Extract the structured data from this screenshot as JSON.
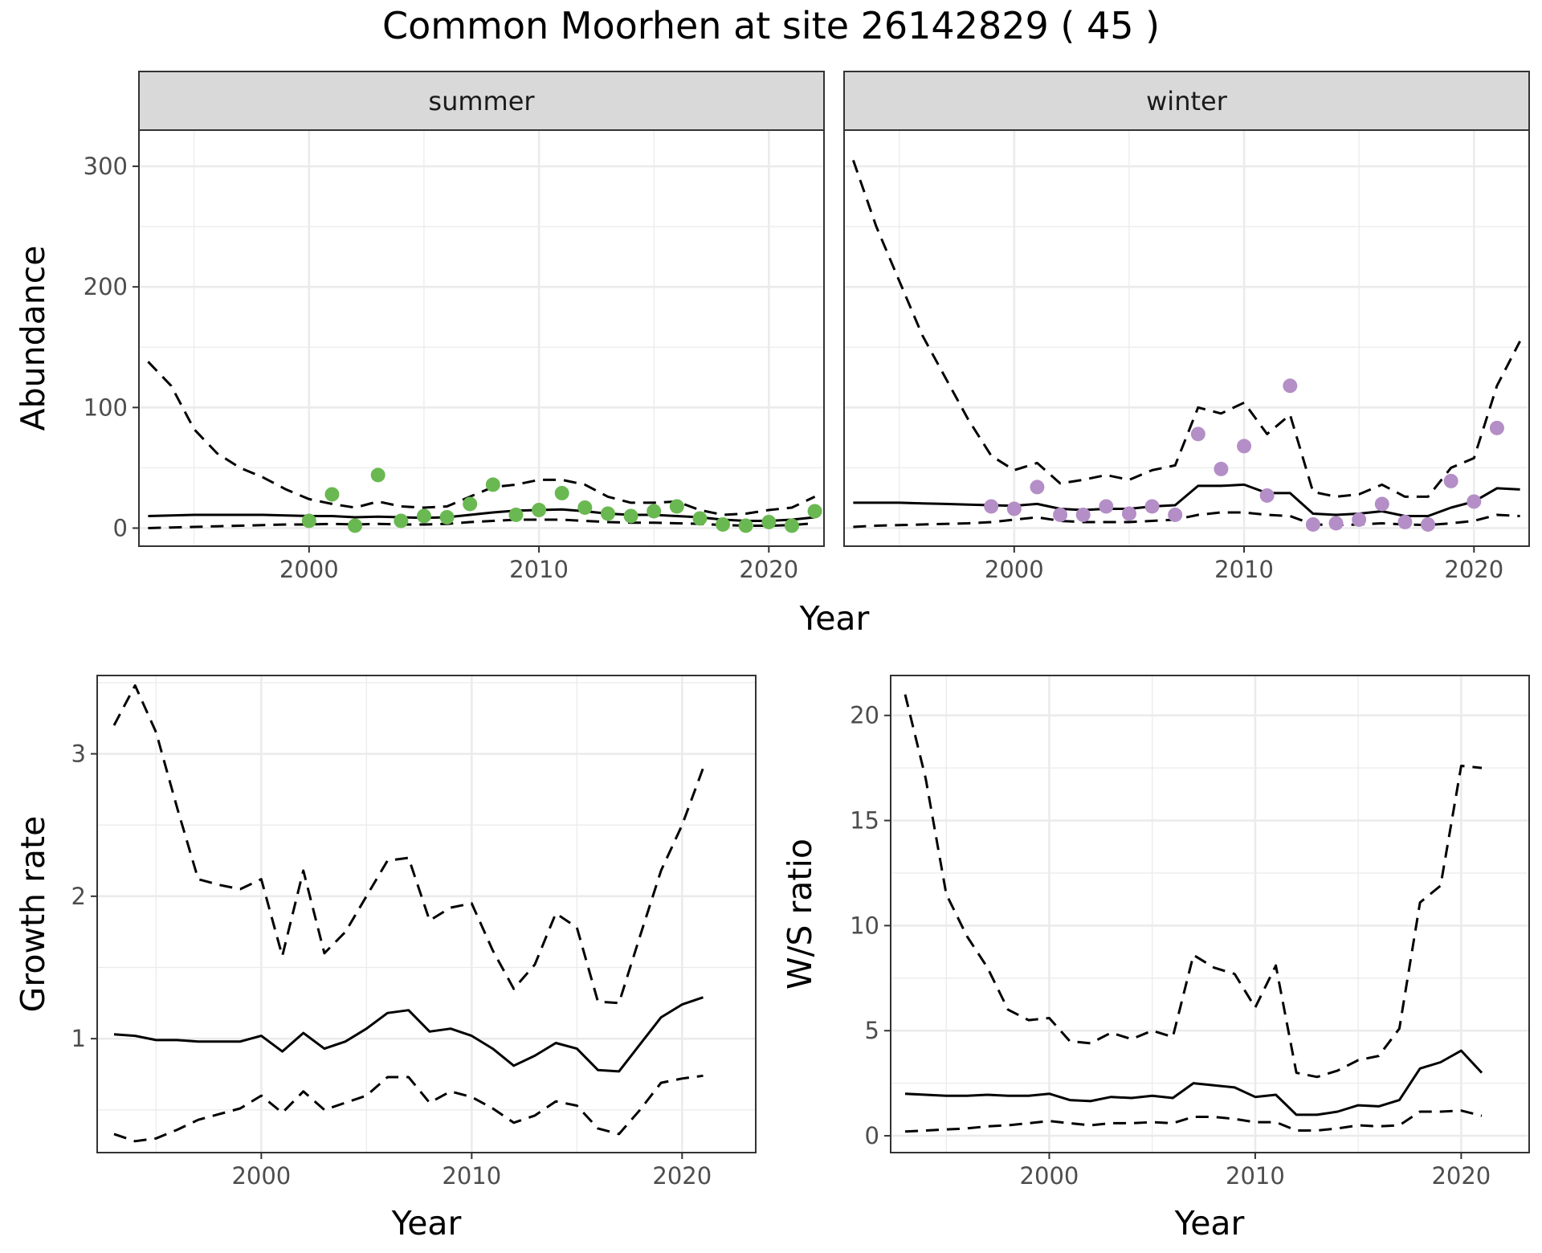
{
  "title": "Common Moorhen at site 26142829 ( 45 )",
  "colors": {
    "summer": "#6ab851",
    "winter": "#b48ec6",
    "strip": "#d9d9d9",
    "line": "#000000"
  },
  "chart_data": [
    {
      "type": "line",
      "panel": "summer",
      "strip_label": "summer",
      "ylabel": "Abundance",
      "xlabel": "Year",
      "xlim": [
        1992.6,
        2022.4
      ],
      "ylim": [
        -15,
        330
      ],
      "x_ticks": [
        "2000",
        "2010",
        "2020"
      ],
      "y_ticks": [
        "0",
        "100",
        "200",
        "300"
      ],
      "x": [
        1993,
        1994,
        1995,
        1996,
        1997,
        1998,
        1999,
        2000,
        2001,
        2002,
        2003,
        2004,
        2005,
        2006,
        2007,
        2008,
        2009,
        2010,
        2011,
        2012,
        2013,
        2014,
        2015,
        2016,
        2017,
        2018,
        2019,
        2020,
        2021,
        2022
      ],
      "series": [
        {
          "role": "estimate",
          "values": [
            10,
            10.5,
            11,
            11,
            11,
            11,
            10.5,
            10,
            10,
            9,
            9.5,
            9,
            8.5,
            9,
            11,
            13,
            14.5,
            15,
            15.5,
            14,
            12,
            11,
            11,
            10,
            9,
            7,
            6,
            6,
            7,
            9
          ]
        },
        {
          "role": "upper",
          "values": [
            138,
            118,
            82,
            62,
            50,
            42,
            32,
            24,
            20,
            17,
            22,
            18,
            17,
            18,
            26,
            34,
            36,
            40,
            40,
            36,
            26,
            21,
            21,
            22,
            15,
            11,
            12,
            15,
            17,
            26
          ]
        },
        {
          "role": "lower",
          "values": [
            0,
            0.5,
            1,
            1.5,
            2,
            2.5,
            3,
            3,
            3.5,
            3,
            3.5,
            3,
            3,
            3.5,
            5,
            6,
            7,
            7,
            7,
            6,
            5,
            4.5,
            4.5,
            4,
            3.5,
            2.5,
            2,
            2,
            2.5,
            4
          ]
        },
        {
          "role": "observed",
          "x": [
            2000,
            2001,
            2002,
            2003,
            2004,
            2005,
            2006,
            2007,
            2008,
            2009,
            2010,
            2011,
            2012,
            2013,
            2014,
            2015,
            2016,
            2017,
            2018,
            2019,
            2020,
            2021,
            2022
          ],
          "values": [
            6,
            28,
            2,
            44,
            6,
            10,
            9,
            20,
            36,
            11,
            15,
            29,
            17,
            12,
            10,
            14,
            18,
            8,
            3,
            2,
            5,
            2,
            14
          ]
        }
      ]
    },
    {
      "type": "line",
      "panel": "winter",
      "strip_label": "winter",
      "xlabel": "Year",
      "xlim": [
        1992.6,
        2022.4
      ],
      "ylim": [
        -15,
        330
      ],
      "x_ticks": [
        "2000",
        "2010",
        "2020"
      ],
      "x": [
        1993,
        1994,
        1995,
        1996,
        1997,
        1998,
        1999,
        2000,
        2001,
        2002,
        2003,
        2004,
        2005,
        2006,
        2007,
        2008,
        2009,
        2010,
        2011,
        2012,
        2013,
        2014,
        2015,
        2016,
        2017,
        2018,
        2019,
        2020,
        2021,
        2022
      ],
      "series": [
        {
          "role": "estimate",
          "values": [
            21,
            21,
            21,
            20.5,
            20,
            19.5,
            19,
            18.5,
            20,
            16,
            15,
            16,
            16,
            18,
            19,
            35,
            35,
            36,
            29,
            29,
            12,
            11,
            12,
            14,
            10,
            10,
            17,
            22,
            33,
            32
          ]
        },
        {
          "role": "upper",
          "values": [
            305,
            250,
            205,
            160,
            125,
            90,
            60,
            48,
            54,
            37,
            40,
            44,
            40,
            48,
            52,
            100,
            95,
            104,
            78,
            94,
            30,
            26,
            28,
            36,
            26,
            26,
            50,
            58,
            118,
            155
          ]
        },
        {
          "role": "lower",
          "values": [
            1,
            2,
            2.5,
            3,
            3.5,
            4,
            5,
            7,
            9,
            6,
            5,
            5,
            5,
            6,
            7,
            11,
            13,
            13,
            11,
            10,
            3,
            2.5,
            3,
            4,
            3,
            2.5,
            4,
            6,
            11,
            10
          ]
        },
        {
          "role": "observed",
          "x": [
            1999,
            2000,
            2001,
            2002,
            2003,
            2004,
            2005,
            2006,
            2007,
            2008,
            2009,
            2010,
            2011,
            2012,
            2013,
            2014,
            2015,
            2016,
            2017,
            2018,
            2019,
            2020,
            2021
          ],
          "values": [
            18,
            16,
            34,
            11,
            11,
            18,
            12,
            18,
            11,
            78,
            49,
            68,
            27,
            118,
            3,
            4,
            7,
            20,
            5,
            3,
            39,
            22,
            83
          ]
        }
      ]
    },
    {
      "type": "line",
      "panel": "growth",
      "ylabel": "Growth rate",
      "xlabel": "Year",
      "xlim": [
        1992.2,
        2023.5
      ],
      "ylim": [
        0.2,
        3.55
      ],
      "x_ticks": [
        "2000",
        "2010",
        "2020"
      ],
      "y_ticks": [
        "1",
        "2",
        "3"
      ],
      "x": [
        1993,
        1994,
        1995,
        1996,
        1997,
        1998,
        1999,
        2000,
        2001,
        2002,
        2003,
        2004,
        2005,
        2006,
        2007,
        2008,
        2009,
        2010,
        2011,
        2012,
        2013,
        2014,
        2015,
        2016,
        2017,
        2018,
        2019,
        2020,
        2021
      ],
      "series": [
        {
          "role": "estimate",
          "values": [
            1.03,
            1.02,
            0.99,
            0.99,
            0.98,
            0.98,
            0.98,
            1.02,
            0.91,
            1.04,
            0.93,
            0.98,
            1.07,
            1.18,
            1.2,
            1.05,
            1.07,
            1.02,
            0.93,
            0.81,
            0.88,
            0.97,
            0.93,
            0.78,
            0.77,
            0.96,
            1.15,
            1.24,
            1.29
          ]
        },
        {
          "role": "upper",
          "values": [
            3.2,
            3.48,
            3.15,
            2.62,
            2.12,
            2.08,
            2.05,
            2.12,
            1.58,
            2.18,
            1.6,
            1.75,
            2.0,
            2.25,
            2.27,
            1.83,
            1.92,
            1.95,
            1.62,
            1.35,
            1.52,
            1.88,
            1.78,
            1.26,
            1.25,
            1.72,
            2.18,
            2.5,
            2.9
          ]
        },
        {
          "role": "lower",
          "values": [
            0.33,
            0.28,
            0.3,
            0.36,
            0.43,
            0.47,
            0.51,
            0.6,
            0.48,
            0.63,
            0.5,
            0.55,
            0.6,
            0.73,
            0.73,
            0.55,
            0.63,
            0.59,
            0.51,
            0.41,
            0.46,
            0.56,
            0.53,
            0.37,
            0.33,
            0.5,
            0.69,
            0.72,
            0.74
          ]
        }
      ]
    },
    {
      "type": "line",
      "panel": "ratio",
      "ylabel": "W/S ratio",
      "xlabel": "Year",
      "xlim": [
        1992.3,
        2023.3
      ],
      "ylim": [
        -0.8,
        21.9
      ],
      "x_ticks": [
        "2000",
        "2010",
        "2020"
      ],
      "y_ticks": [
        "0",
        "5",
        "10",
        "15",
        "20"
      ],
      "x": [
        1993,
        1994,
        1995,
        1996,
        1997,
        1998,
        1999,
        2000,
        2001,
        2002,
        2003,
        2004,
        2005,
        2006,
        2007,
        2008,
        2009,
        2010,
        2011,
        2012,
        2013,
        2014,
        2015,
        2016,
        2017,
        2018,
        2019,
        2020,
        2021
      ],
      "series": [
        {
          "role": "estimate",
          "values": [
            2.0,
            1.95,
            1.9,
            1.9,
            1.95,
            1.9,
            1.9,
            2.0,
            1.7,
            1.65,
            1.85,
            1.8,
            1.9,
            1.8,
            2.5,
            2.4,
            2.3,
            1.85,
            1.95,
            1.0,
            1.0,
            1.15,
            1.45,
            1.4,
            1.7,
            3.2,
            3.5,
            4.05,
            3.0
          ]
        },
        {
          "role": "upper",
          "values": [
            21.0,
            17.0,
            11.5,
            9.5,
            8.0,
            6.0,
            5.5,
            5.6,
            4.5,
            4.4,
            4.9,
            4.6,
            5.0,
            4.7,
            8.6,
            8.0,
            7.7,
            6.1,
            8.1,
            3.0,
            2.8,
            3.1,
            3.6,
            3.8,
            5.1,
            11.1,
            11.9,
            17.6,
            17.5
          ]
        },
        {
          "role": "lower",
          "values": [
            0.2,
            0.25,
            0.3,
            0.35,
            0.45,
            0.5,
            0.6,
            0.7,
            0.6,
            0.5,
            0.6,
            0.6,
            0.65,
            0.6,
            0.9,
            0.9,
            0.8,
            0.65,
            0.65,
            0.25,
            0.25,
            0.35,
            0.5,
            0.45,
            0.5,
            1.15,
            1.15,
            1.2,
            0.95
          ]
        }
      ]
    }
  ]
}
